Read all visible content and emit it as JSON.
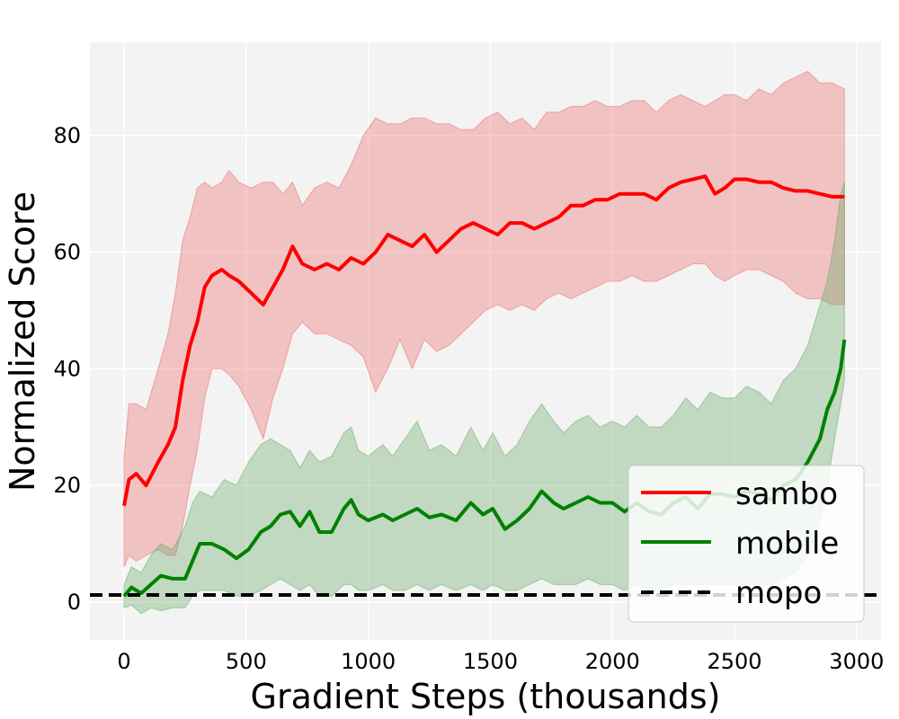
{
  "chart_data": {
    "type": "line",
    "title": "",
    "xlabel": "Gradient Steps (thousands)",
    "ylabel": "Normalized Score",
    "xlim": [
      -140,
      3100
    ],
    "ylim": [
      -6.5,
      96
    ],
    "xticks": [
      0,
      500,
      1000,
      1500,
      2000,
      2500,
      3000
    ],
    "yticks": [
      0,
      20,
      40,
      60,
      80
    ],
    "grid": true,
    "legend_position": "bottom-right",
    "series": [
      {
        "name": "sambo",
        "color": "#ff0000",
        "x": [
          0,
          20,
          50,
          90,
          140,
          180,
          210,
          240,
          270,
          300,
          330,
          360,
          400,
          430,
          470,
          520,
          570,
          610,
          650,
          690,
          730,
          780,
          830,
          880,
          930,
          980,
          1030,
          1080,
          1130,
          1180,
          1230,
          1280,
          1330,
          1380,
          1430,
          1480,
          1530,
          1580,
          1630,
          1680,
          1730,
          1780,
          1830,
          1880,
          1930,
          1980,
          2030,
          2080,
          2130,
          2180,
          2230,
          2280,
          2330,
          2380,
          2420,
          2460,
          2500,
          2550,
          2600,
          2650,
          2700,
          2750,
          2800,
          2850,
          2900,
          2950
        ],
        "y": [
          16.5,
          21,
          22,
          20,
          24,
          27,
          30,
          38,
          44,
          48,
          54,
          56,
          57,
          56,
          55,
          53,
          51,
          54,
          57,
          61,
          58,
          57,
          58,
          57,
          59,
          58,
          60,
          63,
          62,
          61,
          63,
          60,
          62,
          64,
          65,
          64,
          63,
          65,
          65,
          64,
          65,
          66,
          68,
          68,
          69,
          69,
          70,
          70,
          70,
          69,
          71,
          72,
          72.5,
          73,
          70,
          71,
          72.5,
          72.5,
          72,
          72,
          71,
          70.5,
          70.5,
          70,
          69.5,
          69.5
        ]
      },
      {
        "name": "mobile",
        "color": "#008000",
        "x": [
          0,
          30,
          70,
          110,
          150,
          200,
          250,
          280,
          310,
          360,
          410,
          460,
          510,
          560,
          600,
          640,
          680,
          720,
          760,
          800,
          850,
          900,
          930,
          960,
          1000,
          1060,
          1100,
          1150,
          1200,
          1250,
          1300,
          1360,
          1420,
          1470,
          1510,
          1560,
          1610,
          1660,
          1710,
          1760,
          1800,
          1850,
          1900,
          1950,
          2000,
          2050,
          2100,
          2150,
          2200,
          2250,
          2300,
          2350,
          2400,
          2450,
          2500,
          2550,
          2600,
          2650,
          2700,
          2750,
          2800,
          2850,
          2880,
          2910,
          2935,
          2950
        ],
        "y": [
          1,
          2.5,
          1.5,
          3,
          4.5,
          4,
          4,
          7,
          10,
          10,
          9,
          7.5,
          9,
          12,
          13,
          15,
          15.5,
          13,
          15.5,
          12,
          12,
          16,
          17.5,
          15,
          14,
          15,
          14,
          15,
          16,
          14.5,
          15,
          14,
          17,
          15,
          16,
          12.5,
          14,
          16,
          19,
          17,
          16,
          17,
          18,
          17,
          17,
          15.5,
          17,
          15.5,
          15,
          17,
          18,
          16,
          18.5,
          18.5,
          18,
          19,
          18.5,
          17.5,
          20,
          21,
          24,
          28,
          33,
          36,
          40,
          45
        ]
      },
      {
        "name": "mopo",
        "color": "#000000",
        "style": "dashed",
        "x": [
          -140,
          3100
        ],
        "y": [
          1.2,
          1.2
        ]
      }
    ],
    "bands": [
      {
        "series": "sambo",
        "color": "#ef6666",
        "x": [
          0,
          20,
          50,
          90,
          140,
          180,
          210,
          240,
          270,
          300,
          330,
          360,
          400,
          430,
          470,
          520,
          570,
          610,
          650,
          690,
          730,
          780,
          830,
          880,
          930,
          980,
          1030,
          1080,
          1130,
          1180,
          1230,
          1280,
          1330,
          1380,
          1430,
          1480,
          1530,
          1580,
          1630,
          1680,
          1730,
          1780,
          1830,
          1880,
          1930,
          1980,
          2030,
          2080,
          2130,
          2180,
          2230,
          2280,
          2330,
          2380,
          2420,
          2460,
          2500,
          2550,
          2600,
          2650,
          2700,
          2750,
          2800,
          2850,
          2900,
          2950
        ],
        "upper": [
          25,
          34,
          34,
          33,
          40,
          46,
          53,
          62,
          66,
          71,
          72,
          71,
          72,
          74,
          72,
          71,
          72,
          72,
          70,
          72,
          68,
          71,
          72,
          71,
          75,
          80,
          83,
          82,
          82,
          83,
          83,
          82,
          82,
          81,
          81,
          83,
          84,
          82,
          83,
          81,
          84,
          84,
          85,
          85,
          86,
          85,
          85,
          86,
          86,
          84,
          86,
          87,
          86,
          85,
          86,
          87,
          87,
          86,
          88,
          87,
          89,
          90,
          91,
          89,
          89,
          88
        ],
        "lower": [
          6,
          8,
          7,
          8,
          9,
          8,
          8,
          13,
          20,
          26,
          35,
          40,
          40,
          39,
          37,
          33,
          28,
          35,
          40,
          46,
          48,
          46,
          46,
          45,
          44,
          42,
          36,
          40,
          45,
          40,
          45,
          43,
          44,
          46,
          48,
          50,
          51,
          50,
          51,
          50,
          52,
          53,
          52,
          53,
          54,
          55,
          55,
          56,
          55,
          55,
          56,
          57,
          58,
          58,
          56,
          55,
          56,
          57,
          57,
          56,
          55,
          53,
          52,
          52,
          51,
          51
        ]
      },
      {
        "series": "mobile",
        "color": "#60aa60",
        "x": [
          0,
          30,
          70,
          110,
          150,
          200,
          250,
          280,
          310,
          360,
          410,
          460,
          510,
          560,
          600,
          640,
          680,
          720,
          760,
          800,
          850,
          900,
          930,
          960,
          1000,
          1060,
          1100,
          1150,
          1200,
          1250,
          1300,
          1360,
          1420,
          1470,
          1510,
          1560,
          1610,
          1660,
          1710,
          1760,
          1800,
          1850,
          1900,
          1950,
          2000,
          2050,
          2100,
          2150,
          2200,
          2250,
          2300,
          2350,
          2400,
          2450,
          2500,
          2550,
          2600,
          2650,
          2700,
          2750,
          2800,
          2850,
          2880,
          2910,
          2935,
          2950
        ],
        "upper": [
          3,
          6,
          5,
          8,
          10,
          9,
          13,
          17,
          19,
          18,
          21,
          20,
          24,
          27,
          28,
          27,
          26,
          23,
          26,
          24,
          25,
          29,
          30,
          26,
          25,
          27,
          25,
          28,
          31,
          26,
          27,
          25,
          30,
          26,
          29,
          25,
          27,
          31,
          34,
          31,
          29,
          31,
          32,
          30,
          31,
          30,
          32,
          30,
          30,
          32,
          35,
          33,
          36,
          35,
          35,
          37,
          36,
          34,
          38,
          40,
          44,
          51,
          55,
          62,
          70,
          72
        ],
        "lower": [
          -1,
          -0.5,
          -2,
          -1,
          -1.5,
          -1,
          -1,
          1,
          2,
          2,
          2,
          1,
          1,
          2,
          3,
          4,
          3,
          2,
          3,
          1,
          1,
          3,
          3,
          2,
          2,
          3,
          2,
          2,
          3,
          2,
          3,
          2,
          3,
          2,
          3,
          2,
          2,
          3,
          4,
          3,
          3,
          3,
          4,
          3,
          3,
          2,
          3,
          2,
          2,
          3,
          3,
          3,
          3,
          3,
          3,
          3,
          3,
          3,
          4,
          5,
          8,
          14,
          20,
          28,
          34,
          38
        ]
      }
    ]
  }
}
